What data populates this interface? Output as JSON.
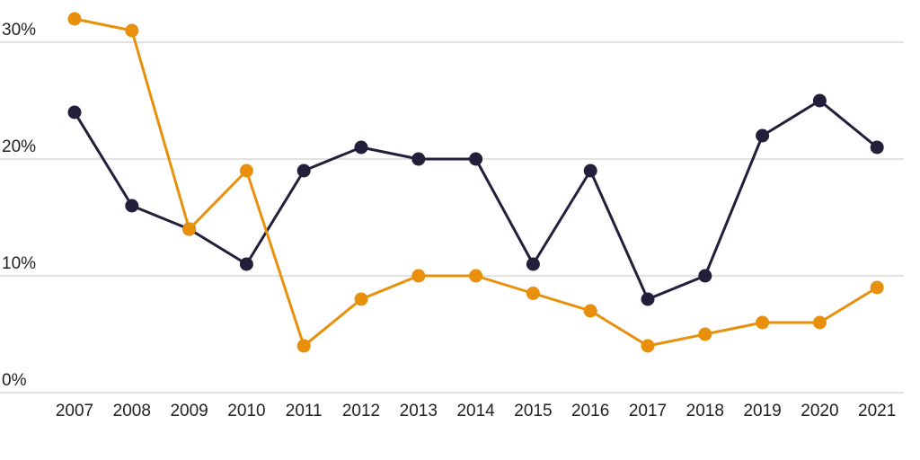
{
  "chart_data": {
    "type": "line",
    "title": "",
    "xlabel": "",
    "ylabel": "",
    "x": [
      2007,
      2008,
      2009,
      2010,
      2011,
      2012,
      2013,
      2014,
      2015,
      2016,
      2017,
      2018,
      2019,
      2020,
      2021
    ],
    "x_tick_labels": [
      "2007",
      "2008",
      "2009",
      "2010",
      "2011",
      "2012",
      "2013",
      "2014",
      "2015",
      "2016",
      "2017",
      "2018",
      "2019",
      "2020",
      "2021"
    ],
    "y_ticks": [
      0,
      10,
      20,
      30
    ],
    "y_tick_labels": [
      "0%",
      "10%",
      "20%",
      "30%"
    ],
    "ylim": [
      0,
      32
    ],
    "grid": "horizontal",
    "legend": "none",
    "series": [
      {
        "color": "#231f3a",
        "values": [
          24,
          16,
          14,
          11,
          19,
          21,
          20,
          20,
          11,
          19,
          8,
          10,
          22,
          25,
          21
        ]
      },
      {
        "color": "#e8900c",
        "values": [
          32,
          31,
          14,
          19,
          4,
          8,
          10,
          10,
          8.5,
          7,
          4,
          5,
          6,
          6,
          9
        ]
      }
    ]
  }
}
